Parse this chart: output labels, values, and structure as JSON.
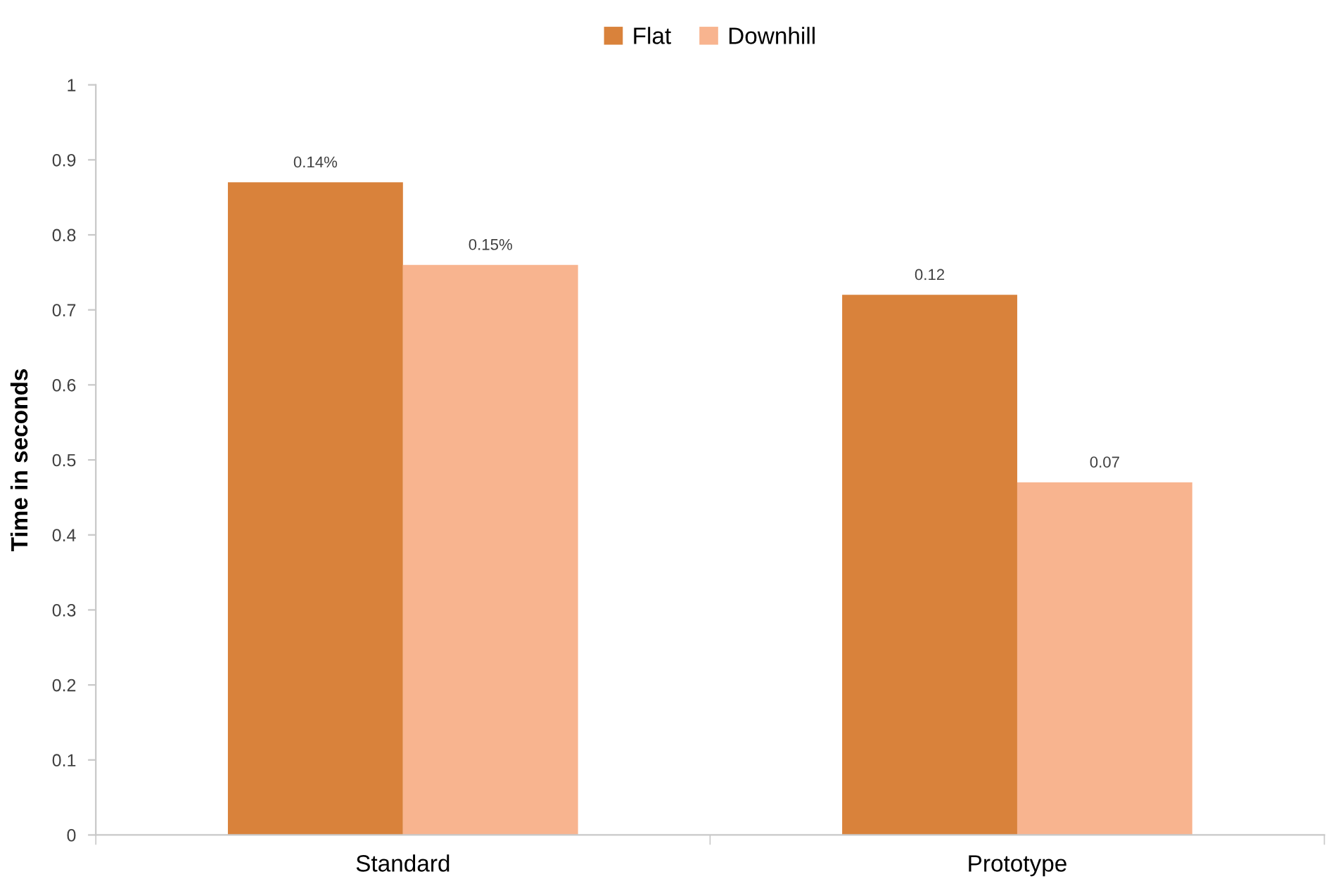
{
  "chart_data": {
    "type": "bar",
    "ylabel": "Time in seconds",
    "categories": [
      "Standard",
      "Prototype"
    ],
    "series": [
      {
        "name": "Flat",
        "color": "#d9823b",
        "values": [
          0.87,
          0.72
        ]
      },
      {
        "name": "Downhill",
        "color": "#f8b48f",
        "values": [
          0.76,
          0.47
        ]
      }
    ],
    "annotations": [
      "0.14%",
      "0.15%",
      "0.12",
      "0.07"
    ],
    "ylim": [
      0,
      1
    ],
    "yticks": [
      0,
      0.1,
      0.2,
      0.3,
      0.4,
      0.5,
      0.6,
      0.7,
      0.8,
      0.9,
      1
    ],
    "grid": false,
    "legend": "top"
  }
}
